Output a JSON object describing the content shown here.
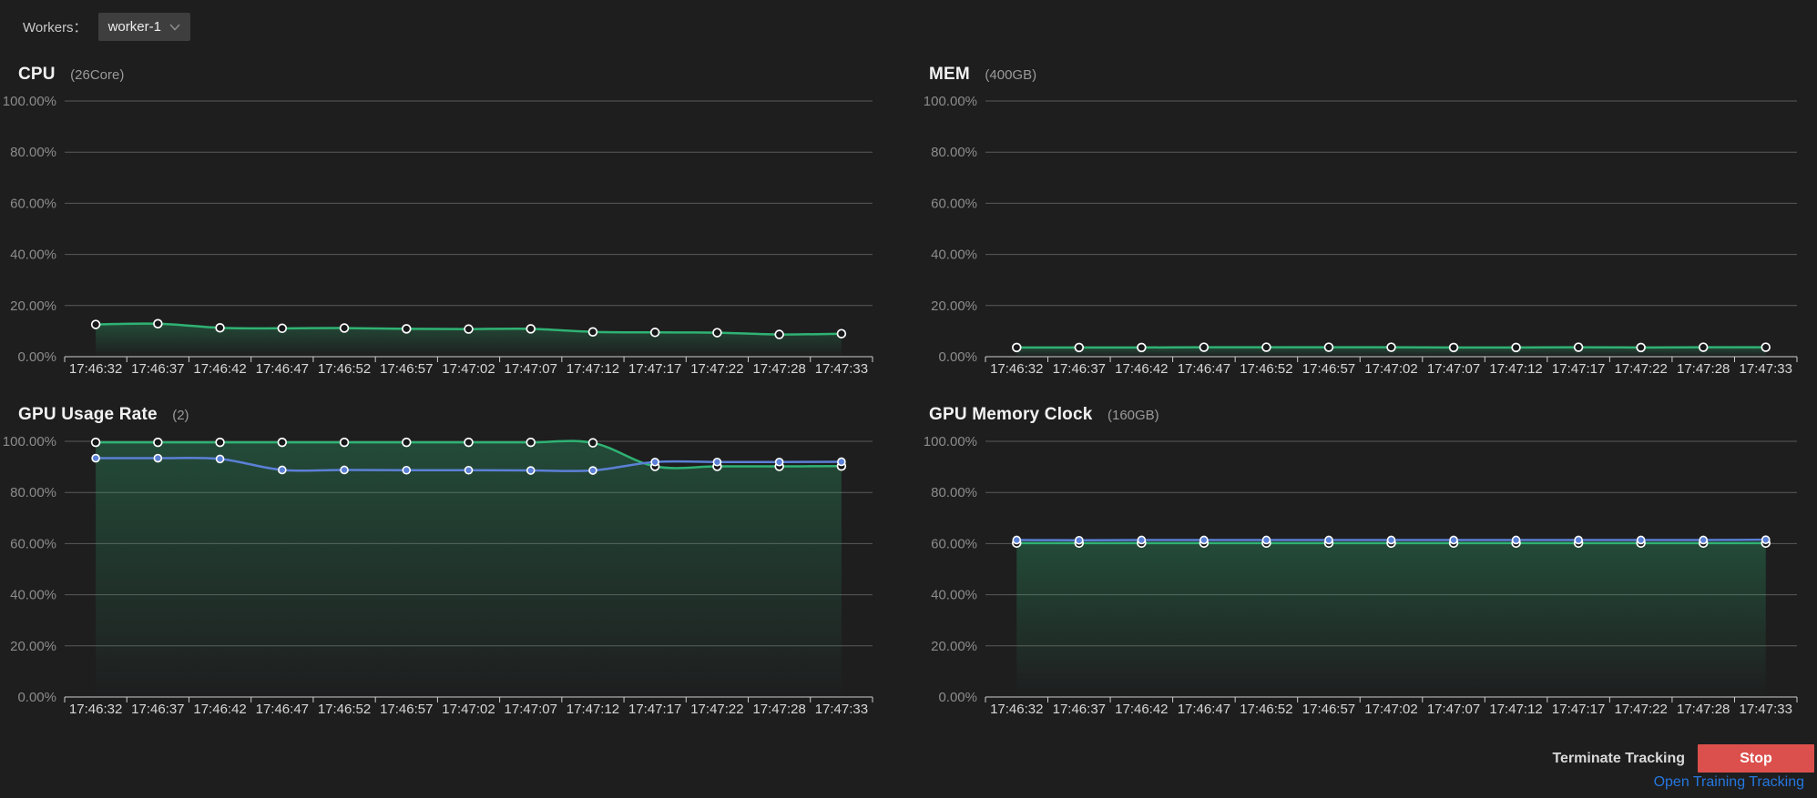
{
  "workers_bar": {
    "label": "Workers：",
    "dropdown_value": "worker-1"
  },
  "footer": {
    "terminate_label": "Terminate Tracking",
    "stop_button_label": "Stop",
    "open_training_link": "Open Training Tracking"
  },
  "colors": {
    "background": "#1e1e1f",
    "green_series": "#2fb273",
    "blue_series": "#5b80d6",
    "stop_red": "#db504c",
    "link_blue": "#2577dd",
    "grid_line": "#5a5a5a",
    "axis_line": "#cfcfcf",
    "y_label": "#8c8c8c",
    "x_label": "#d6d6d6",
    "dropdown_bg": "#3e3e3e"
  },
  "chart_data": [
    {
      "type": "line",
      "title": "CPU",
      "subtitle": "(26Core)",
      "x": [
        "17:46:32",
        "17:46:37",
        "17:46:42",
        "17:46:47",
        "17:46:52",
        "17:46:57",
        "17:47:02",
        "17:47:07",
        "17:47:12",
        "17:47:17",
        "17:47:22",
        "17:47:28",
        "17:47:33"
      ],
      "ylim": [
        0,
        100
      ],
      "ytick_labels": [
        "100.00%",
        "80.00%",
        "60.00%",
        "40.00%",
        "20.00%",
        "0.00%"
      ],
      "grid": true,
      "legend": false,
      "series": [
        {
          "name": "series-green",
          "color_key": "green_series",
          "area": true,
          "marker": "hollow-circle",
          "values": [
            12.6,
            12.9,
            11.3,
            11.1,
            11.2,
            10.9,
            10.8,
            10.9,
            9.7,
            9.5,
            9.4,
            8.7,
            9.0
          ]
        }
      ]
    },
    {
      "type": "line",
      "title": "MEM",
      "subtitle": "(400GB)",
      "x": [
        "17:46:32",
        "17:46:37",
        "17:46:42",
        "17:46:47",
        "17:46:52",
        "17:46:57",
        "17:47:02",
        "17:47:07",
        "17:47:12",
        "17:47:17",
        "17:47:22",
        "17:47:28",
        "17:47:33"
      ],
      "ylim": [
        0,
        100
      ],
      "ytick_labels": [
        "100.00%",
        "80.00%",
        "60.00%",
        "40.00%",
        "20.00%",
        "0.00%"
      ],
      "grid": true,
      "legend": false,
      "series": [
        {
          "name": "series-green",
          "color_key": "green_series",
          "area": true,
          "marker": "hollow-circle",
          "values": [
            3.6,
            3.6,
            3.6,
            3.7,
            3.7,
            3.7,
            3.7,
            3.6,
            3.6,
            3.7,
            3.6,
            3.7,
            3.7
          ]
        }
      ]
    },
    {
      "type": "line",
      "title": "GPU Usage Rate",
      "subtitle": "(2)",
      "x": [
        "17:46:32",
        "17:46:37",
        "17:46:42",
        "17:46:47",
        "17:46:52",
        "17:46:57",
        "17:47:02",
        "17:47:07",
        "17:47:12",
        "17:47:17",
        "17:47:22",
        "17:47:28",
        "17:47:33"
      ],
      "ylim": [
        0,
        100
      ],
      "ytick_labels": [
        "100.00%",
        "80.00%",
        "60.00%",
        "40.00%",
        "20.00%",
        "0.00%"
      ],
      "grid": true,
      "legend": false,
      "series": [
        {
          "name": "series-green",
          "color_key": "green_series",
          "area": true,
          "marker": "hollow-circle",
          "values": [
            99.6,
            99.6,
            99.6,
            99.6,
            99.6,
            99.6,
            99.6,
            99.6,
            99.4,
            90.2,
            90.2,
            90.2,
            90.3
          ]
        },
        {
          "name": "series-blue",
          "color_key": "blue_series",
          "area": false,
          "marker": "filled-circle",
          "values": [
            93.4,
            93.4,
            93.1,
            88.8,
            88.8,
            88.7,
            88.7,
            88.6,
            88.6,
            91.9,
            91.9,
            91.9,
            92.0
          ]
        }
      ]
    },
    {
      "type": "line",
      "title": "GPU Memory Clock",
      "subtitle": "(160GB)",
      "x": [
        "17:46:32",
        "17:46:37",
        "17:46:42",
        "17:46:47",
        "17:46:52",
        "17:46:57",
        "17:47:02",
        "17:47:07",
        "17:47:12",
        "17:47:17",
        "17:47:22",
        "17:47:28",
        "17:47:33"
      ],
      "ylim": [
        0,
        100
      ],
      "ytick_labels": [
        "100.00%",
        "80.00%",
        "60.00%",
        "40.00%",
        "20.00%",
        "0.00%"
      ],
      "grid": true,
      "legend": false,
      "series": [
        {
          "name": "series-green",
          "color_key": "green_series",
          "area": true,
          "marker": "hollow-circle",
          "values": [
            60.2,
            60.2,
            60.2,
            60.2,
            60.2,
            60.2,
            60.2,
            60.2,
            60.2,
            60.2,
            60.2,
            60.2,
            60.2
          ]
        },
        {
          "name": "series-blue",
          "color_key": "blue_series",
          "area": false,
          "marker": "filled-circle",
          "values": [
            61.4,
            61.3,
            61.4,
            61.4,
            61.4,
            61.4,
            61.4,
            61.4,
            61.4,
            61.4,
            61.4,
            61.4,
            61.5
          ]
        }
      ]
    }
  ]
}
